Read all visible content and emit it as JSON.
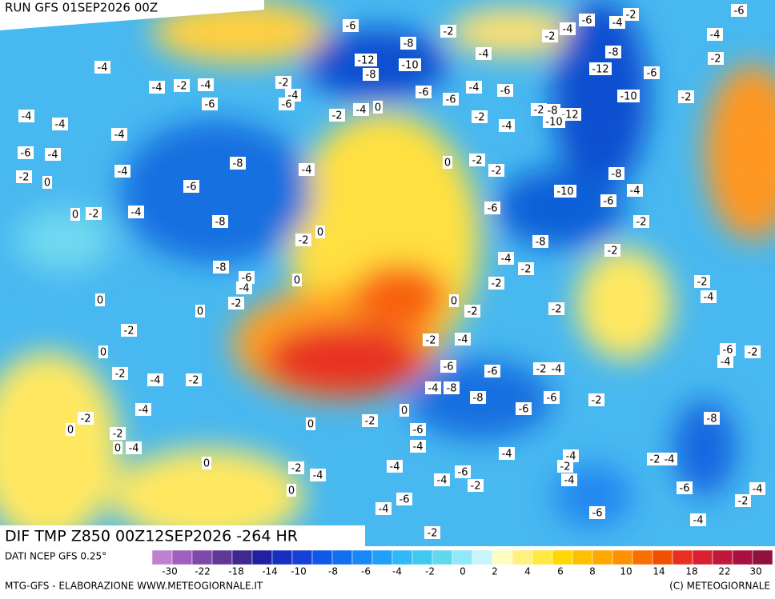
{
  "header": {
    "run": "RUN GFS 01SEP2026 00Z"
  },
  "map": {
    "title": "DIF TMP Z850 00Z12SEP2026 -264 HR",
    "labels": [
      -4,
      -4,
      -2,
      -4,
      -6,
      -4,
      -4,
      -4,
      -6,
      -4,
      -4,
      -2,
      0,
      -6,
      -8,
      0,
      -2,
      -4,
      -8,
      -2,
      0,
      -8,
      -6,
      -4,
      -2,
      0,
      0,
      0,
      -2,
      0,
      -2,
      -4,
      -2,
      -4,
      -2,
      0,
      -2,
      0,
      -4,
      0,
      -2,
      -4,
      -6,
      -2,
      -4,
      0,
      -4,
      -6,
      -8,
      -12,
      -8,
      -10,
      -2,
      -4,
      -6,
      -6,
      -4,
      -6,
      -2,
      -4,
      -2,
      -8,
      -12,
      -10,
      -6,
      -4,
      -2,
      -4,
      -2,
      -8,
      -12,
      -6,
      -10,
      -2,
      -2,
      -4,
      -6,
      0,
      -2,
      -2,
      -8,
      -4,
      -10,
      -6,
      -6,
      -2,
      -8,
      -2,
      -4,
      -2,
      -2,
      0,
      -2,
      -2,
      -2,
      -4,
      -2,
      -4,
      -6,
      -6,
      -2,
      -4,
      -4,
      -8,
      -8,
      -6,
      -6,
      -2,
      -6,
      -2,
      -4,
      -2,
      0,
      0,
      -6,
      -4,
      -4,
      -4,
      -2,
      -2,
      -4,
      -8,
      -4,
      -6,
      -4,
      -2,
      -4,
      -6,
      -4,
      -2,
      -2,
      -4,
      0,
      -6,
      -4,
      -6,
      -4,
      -2
    ]
  },
  "legend": {
    "source": "DATI NCEP GFS 0.25°",
    "colors": [
      "#c080d0",
      "#a060c0",
      "#8048a8",
      "#603898",
      "#402890",
      "#2020a0",
      "#1830c0",
      "#1840d8",
      "#1058e8",
      "#1070f0",
      "#1888f8",
      "#20a0f8",
      "#30b8f8",
      "#40c8f0",
      "#60d8f0",
      "#90e8f8",
      "#c8f4fc",
      "#fffcc0",
      "#fff080",
      "#ffe840",
      "#ffd800",
      "#ffc000",
      "#ffa800",
      "#ff9000",
      "#f87000",
      "#f05000",
      "#e83020",
      "#d82030",
      "#c01838",
      "#a81040",
      "#901040"
    ],
    "ticks": [
      -30,
      -22,
      -18,
      -14,
      -10,
      -8,
      -6,
      -4,
      -2,
      0,
      2,
      4,
      6,
      8,
      10,
      14,
      18,
      22,
      30
    ]
  },
  "footer": {
    "credit": "MTG-GFS - ELABORAZIONE WWW.METEOGIORNALE.IT",
    "copyright": "(C) METEOGIORNALE"
  }
}
